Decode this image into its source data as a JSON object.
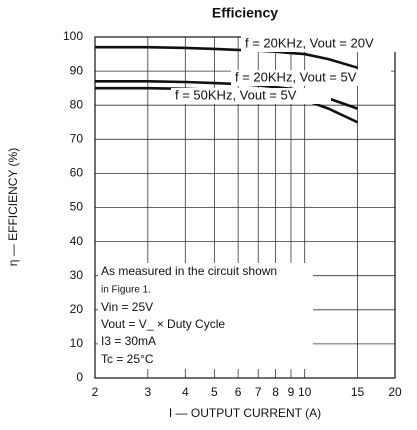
{
  "chart_data": {
    "type": "line",
    "title": "Efficiency",
    "x_label": "I — OUTPUT CURRENT (A)",
    "y_label": "η — EFFICIENCY (%)",
    "x_log": true,
    "xlim": [
      2,
      20
    ],
    "xticks": [
      2,
      3,
      4,
      5,
      6,
      7,
      8,
      9,
      10,
      15,
      20
    ],
    "ylim": [
      0,
      100
    ],
    "yticks": [
      0,
      10,
      20,
      30,
      40,
      50,
      60,
      70,
      80,
      90,
      100
    ],
    "grid": true,
    "x": [
      2,
      3,
      4,
      5,
      6,
      7,
      8,
      9,
      10,
      12,
      15
    ],
    "series": [
      {
        "name": "f = 20KHz, Vout = 20V",
        "color": "#111111",
        "values": [
          97,
          97,
          96.8,
          96.5,
          96.2,
          96,
          95.7,
          95.3,
          95,
          93.5,
          91
        ]
      },
      {
        "name": "f = 20KHz, Vout = 5V",
        "color": "#111111",
        "values": [
          87,
          87,
          86.8,
          86.5,
          86.2,
          85.8,
          85.3,
          84.8,
          84.2,
          82,
          79
        ]
      },
      {
        "name": "f = 50KHz, Vout = 5V",
        "color": "#111111",
        "values": [
          85,
          85,
          84.8,
          84.5,
          84,
          83.5,
          83,
          82.3,
          81.5,
          79,
          75
        ]
      }
    ],
    "annotations": [
      "As measured in the circuit shown",
      "in Figure 1.",
      "Vin = 25V",
      "Vout = V_ × Duty Cycle",
      "I3 = 30mA",
      "Tc = 25°C"
    ]
  }
}
